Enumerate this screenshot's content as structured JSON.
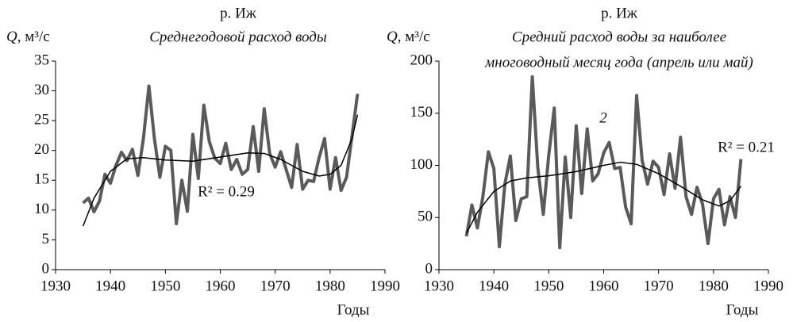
{
  "chart_data": [
    {
      "type": "line",
      "title": "р. Иж",
      "subtitle": [
        "Среднегодовой расход воды"
      ],
      "ylabel_symbol": "Q",
      "ylabel_unit": ", м³/с",
      "xlabel": "Годы",
      "r2_label": "R² = 0.29",
      "xlim": [
        1930,
        1990
      ],
      "xticks": [
        1930,
        1940,
        1950,
        1960,
        1970,
        1980,
        1990
      ],
      "ylim": [
        0,
        35
      ],
      "yticks": [
        0,
        5,
        10,
        15,
        20,
        25,
        30,
        35
      ],
      "grid": false,
      "x": [
        1935,
        1936,
        1937,
        1938,
        1939,
        1940,
        1941,
        1942,
        1943,
        1944,
        1945,
        1946,
        1947,
        1948,
        1949,
        1950,
        1951,
        1952,
        1953,
        1954,
        1955,
        1956,
        1957,
        1958,
        1959,
        1960,
        1961,
        1962,
        1963,
        1964,
        1965,
        1966,
        1967,
        1968,
        1969,
        1970,
        1971,
        1972,
        1973,
        1974,
        1975,
        1976,
        1977,
        1978,
        1979,
        1980,
        1981,
        1982,
        1983,
        1984,
        1985
      ],
      "series": [
        {
          "color": "#5a5a5a",
          "values": [
            11.2,
            12,
            9.7,
            11.5,
            16,
            14.5,
            17.5,
            19.7,
            18.3,
            20.2,
            15.8,
            22,
            30.8,
            22,
            15.5,
            20.7,
            20,
            7.7,
            15,
            9.8,
            22.7,
            15.3,
            27.6,
            21.5,
            18.7,
            17.8,
            21.2,
            16.8,
            18.5,
            16,
            16.8,
            24,
            16.5,
            27,
            19.5,
            17.2,
            19.8,
            16.8,
            13.8,
            21,
            13.5,
            15,
            14.8,
            18.8,
            22,
            13.5,
            18.8,
            13.3,
            15.5,
            22.5,
            29.5
          ]
        },
        {
          "color": "#000000",
          "x": [
            1935,
            1937,
            1940,
            1943,
            1946,
            1950,
            1955,
            1960,
            1965,
            1968,
            1971,
            1975,
            1978,
            1980,
            1982,
            1984,
            1985
          ],
          "values": [
            7.3,
            12,
            16.5,
            18.6,
            18.8,
            18.4,
            18.2,
            18.9,
            19.6,
            19.5,
            18.5,
            16.5,
            15.7,
            16,
            17.5,
            22,
            26
          ]
        }
      ]
    },
    {
      "type": "line",
      "title": "р. Иж",
      "subtitle": [
        "Средний расход воды за наиболее",
        "многоводный месяц года (апрель или май)"
      ],
      "ylabel_symbol": "Q",
      "ylabel_unit": ", м³/с",
      "xlabel": "Годы",
      "r2_label": "R² = 0.21",
      "annotation": "2",
      "xlim": [
        1930,
        1990
      ],
      "xticks": [
        1930,
        1940,
        1950,
        1960,
        1970,
        1980,
        1990
      ],
      "ylim": [
        0,
        200
      ],
      "yticks": [
        0,
        50,
        100,
        150,
        200
      ],
      "grid": false,
      "x": [
        1935,
        1936,
        1937,
        1938,
        1939,
        1940,
        1941,
        1942,
        1943,
        1944,
        1945,
        1946,
        1947,
        1948,
        1949,
        1950,
        1951,
        1952,
        1953,
        1954,
        1955,
        1956,
        1957,
        1958,
        1959,
        1960,
        1961,
        1962,
        1963,
        1964,
        1965,
        1966,
        1967,
        1968,
        1969,
        1970,
        1971,
        1972,
        1973,
        1974,
        1975,
        1976,
        1977,
        1978,
        1979,
        1980,
        1981,
        1982,
        1983,
        1984,
        1985
      ],
      "series": [
        {
          "color": "#5a5a5a",
          "values": [
            32,
            62,
            40,
            70,
            113,
            97,
            22,
            82,
            109,
            47,
            68,
            70,
            185,
            98,
            53,
            110,
            155,
            21,
            108,
            50,
            138,
            73,
            135,
            85,
            92,
            112,
            122,
            97,
            98,
            60,
            44,
            167,
            105,
            82,
            104,
            98,
            72,
            111,
            78,
            127,
            70,
            53,
            79,
            63,
            25,
            68,
            77,
            43,
            70,
            50,
            106
          ]
        },
        {
          "color": "#000000",
          "x": [
            1935,
            1937,
            1940,
            1943,
            1946,
            1950,
            1955,
            1960,
            1963,
            1966,
            1970,
            1974,
            1978,
            1981,
            1983,
            1985
          ],
          "values": [
            35,
            55,
            75,
            85,
            88,
            90,
            94,
            100,
            103,
            101,
            92,
            80,
            67,
            61,
            66,
            80
          ]
        }
      ]
    }
  ]
}
